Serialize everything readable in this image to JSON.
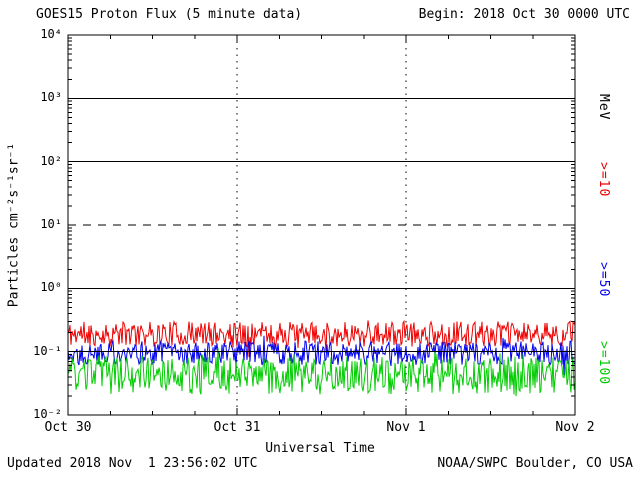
{
  "header": {
    "title": "GOES15 Proton Flux (5 minute data)",
    "begin_label": "Begin: 2018 Oct 30 0000 UTC"
  },
  "footer": {
    "updated": "Updated 2018 Nov  1 23:56:02 UTC",
    "source": "NOAA/SWPC Boulder, CO USA"
  },
  "chart_data": {
    "type": "line",
    "title": "GOES15 Proton Flux (5 minute data)",
    "subtitle": "Begin: 2018 Oct 30 0000 UTC",
    "xlabel": "Universal Time",
    "ylabel": "Particles cm⁻²s⁻¹sr⁻¹",
    "y_scale": "log",
    "y_exponent_range": [
      -2,
      4
    ],
    "y_tick_labels": [
      "10⁴",
      "10³",
      "10²",
      "10¹",
      "10⁰",
      "10⁻¹",
      "10⁻²"
    ],
    "x_ticks": [
      "Oct 30",
      "Oct 31",
      "Nov 1",
      "Nov 2"
    ],
    "x_range_days": 3,
    "grid": {
      "hlines": [
        {
          "value": 1000,
          "style": "solid"
        },
        {
          "value": 100,
          "style": "solid"
        },
        {
          "value": 10,
          "style": "dashed"
        },
        {
          "value": 1,
          "style": "solid"
        },
        {
          "value": 0.1,
          "style": "solid"
        }
      ],
      "vlines_days": [
        1,
        2
      ]
    },
    "right_axis": {
      "label": "MeV",
      "color": "#000000"
    },
    "series": [
      {
        "name": ">=10",
        "unit": "MeV",
        "color": "#ee0000",
        "baseline_flux": 0.19,
        "flux_range": [
          0.12,
          0.35
        ],
        "noise_halfrange_decades": 0.2,
        "seed": 11
      },
      {
        "name": ">=50",
        "unit": "MeV",
        "color": "#0000ee",
        "baseline_flux": 0.095,
        "flux_range": [
          0.06,
          0.15
        ],
        "noise_halfrange_decades": 0.19,
        "seed": 22
      },
      {
        "name": ">=100",
        "unit": "MeV",
        "color": "#00cc00",
        "baseline_flux": 0.042,
        "flux_range": [
          0.02,
          0.09
        ],
        "noise_halfrange_decades": 0.3,
        "seed": 33
      }
    ]
  }
}
